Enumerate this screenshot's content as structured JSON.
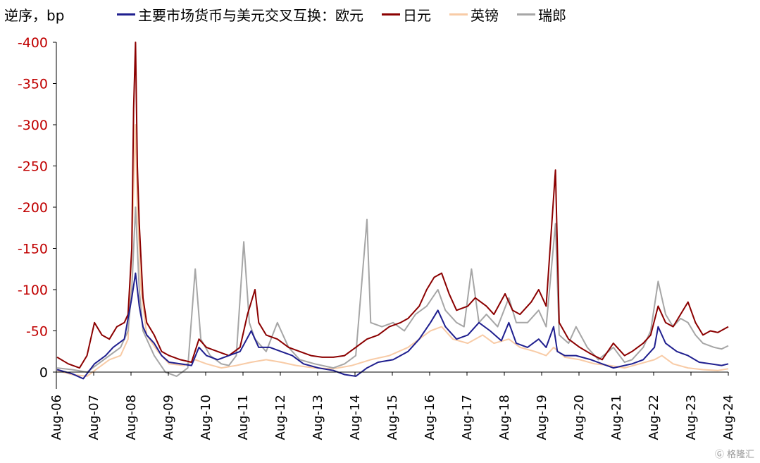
{
  "chart_data": {
    "type": "line",
    "ylabel": "逆序，bp",
    "y_reversed": true,
    "ylim": [
      20,
      -400
    ],
    "yticks": [
      -400,
      -350,
      -300,
      -250,
      -200,
      -150,
      -100,
      -50,
      0
    ],
    "ytick_labels": [
      "-400",
      "-350",
      "-300",
      "-250",
      "-200",
      "-150",
      "-100",
      "-50",
      "0"
    ],
    "ytick_color": "#c00000",
    "xlim": [
      2006.58,
      2024.58
    ],
    "xticks": [
      "Aug-06",
      "Aug-07",
      "Aug-08",
      "Aug-09",
      "Aug-10",
      "Aug-11",
      "Aug-12",
      "Aug-13",
      "Aug-14",
      "Aug-15",
      "Aug-16",
      "Aug-17",
      "Aug-18",
      "Aug-19",
      "Aug-20",
      "Aug-21",
      "Aug-22",
      "Aug-23",
      "Aug-24"
    ],
    "legend_position": "top",
    "grid": false,
    "series": [
      {
        "name": "主要市场货币与美元交叉互换：欧元",
        "color": "#1f1f8f",
        "points": [
          [
            2006.6,
            -3
          ],
          [
            2007.0,
            2
          ],
          [
            2007.3,
            8
          ],
          [
            2007.6,
            -10
          ],
          [
            2007.9,
            -20
          ],
          [
            2008.1,
            -30
          ],
          [
            2008.4,
            -40
          ],
          [
            2008.6,
            -90
          ],
          [
            2008.7,
            -120
          ],
          [
            2008.8,
            -80
          ],
          [
            2008.9,
            -55
          ],
          [
            2009.0,
            -45
          ],
          [
            2009.2,
            -35
          ],
          [
            2009.4,
            -20
          ],
          [
            2009.6,
            -12
          ],
          [
            2009.9,
            -10
          ],
          [
            2010.2,
            -8
          ],
          [
            2010.4,
            -30
          ],
          [
            2010.6,
            -20
          ],
          [
            2010.9,
            -15
          ],
          [
            2011.2,
            -20
          ],
          [
            2011.5,
            -25
          ],
          [
            2011.8,
            -50
          ],
          [
            2011.9,
            -40
          ],
          [
            2012.0,
            -30
          ],
          [
            2012.3,
            -30
          ],
          [
            2012.6,
            -25
          ],
          [
            2012.9,
            -20
          ],
          [
            2013.2,
            -10
          ],
          [
            2013.6,
            -5
          ],
          [
            2014.0,
            -2
          ],
          [
            2014.3,
            3
          ],
          [
            2014.6,
            5
          ],
          [
            2014.9,
            -5
          ],
          [
            2015.2,
            -12
          ],
          [
            2015.6,
            -15
          ],
          [
            2016.0,
            -25
          ],
          [
            2016.3,
            -40
          ],
          [
            2016.6,
            -60
          ],
          [
            2016.8,
            -75
          ],
          [
            2017.0,
            -55
          ],
          [
            2017.3,
            -40
          ],
          [
            2017.6,
            -45
          ],
          [
            2017.9,
            -60
          ],
          [
            2018.2,
            -50
          ],
          [
            2018.5,
            -38
          ],
          [
            2018.7,
            -60
          ],
          [
            2018.9,
            -35
          ],
          [
            2019.2,
            -30
          ],
          [
            2019.5,
            -40
          ],
          [
            2019.7,
            -30
          ],
          [
            2019.9,
            -55
          ],
          [
            2020.0,
            -25
          ],
          [
            2020.2,
            -20
          ],
          [
            2020.5,
            -20
          ],
          [
            2020.9,
            -15
          ],
          [
            2021.2,
            -10
          ],
          [
            2021.5,
            -5
          ],
          [
            2021.8,
            -8
          ],
          [
            2022.0,
            -10
          ],
          [
            2022.3,
            -15
          ],
          [
            2022.6,
            -30
          ],
          [
            2022.7,
            -55
          ],
          [
            2022.9,
            -35
          ],
          [
            2023.2,
            -25
          ],
          [
            2023.5,
            -20
          ],
          [
            2023.8,
            -12
          ],
          [
            2024.1,
            -10
          ],
          [
            2024.4,
            -8
          ],
          [
            2024.58,
            -10
          ]
        ]
      },
      {
        "name": "日元",
        "color": "#8b0000",
        "points": [
          [
            2006.6,
            -18
          ],
          [
            2006.9,
            -10
          ],
          [
            2007.2,
            -5
          ],
          [
            2007.4,
            -20
          ],
          [
            2007.6,
            -60
          ],
          [
            2007.8,
            -45
          ],
          [
            2008.0,
            -40
          ],
          [
            2008.2,
            -55
          ],
          [
            2008.4,
            -60
          ],
          [
            2008.5,
            -70
          ],
          [
            2008.6,
            -150
          ],
          [
            2008.65,
            -320
          ],
          [
            2008.7,
            -400
          ],
          [
            2008.75,
            -250
          ],
          [
            2008.8,
            -180
          ],
          [
            2008.9,
            -90
          ],
          [
            2009.0,
            -60
          ],
          [
            2009.2,
            -45
          ],
          [
            2009.4,
            -25
          ],
          [
            2009.6,
            -20
          ],
          [
            2009.9,
            -15
          ],
          [
            2010.2,
            -12
          ],
          [
            2010.4,
            -40
          ],
          [
            2010.6,
            -30
          ],
          [
            2010.9,
            -25
          ],
          [
            2011.2,
            -20
          ],
          [
            2011.5,
            -30
          ],
          [
            2011.7,
            -70
          ],
          [
            2011.9,
            -100
          ],
          [
            2012.0,
            -60
          ],
          [
            2012.2,
            -45
          ],
          [
            2012.5,
            -40
          ],
          [
            2012.8,
            -30
          ],
          [
            2013.1,
            -25
          ],
          [
            2013.4,
            -20
          ],
          [
            2013.7,
            -18
          ],
          [
            2014.0,
            -18
          ],
          [
            2014.3,
            -20
          ],
          [
            2014.6,
            -30
          ],
          [
            2014.9,
            -40
          ],
          [
            2015.2,
            -45
          ],
          [
            2015.5,
            -55
          ],
          [
            2015.8,
            -60
          ],
          [
            2016.0,
            -65
          ],
          [
            2016.3,
            -80
          ],
          [
            2016.5,
            -100
          ],
          [
            2016.7,
            -115
          ],
          [
            2016.9,
            -120
          ],
          [
            2017.1,
            -95
          ],
          [
            2017.3,
            -75
          ],
          [
            2017.6,
            -80
          ],
          [
            2017.8,
            -90
          ],
          [
            2018.1,
            -80
          ],
          [
            2018.3,
            -70
          ],
          [
            2018.6,
            -95
          ],
          [
            2018.8,
            -75
          ],
          [
            2019.0,
            -70
          ],
          [
            2019.3,
            -85
          ],
          [
            2019.5,
            -100
          ],
          [
            2019.7,
            -80
          ],
          [
            2019.95,
            -245
          ],
          [
            2020.05,
            -60
          ],
          [
            2020.3,
            -40
          ],
          [
            2020.6,
            -30
          ],
          [
            2020.9,
            -22
          ],
          [
            2021.2,
            -15
          ],
          [
            2021.5,
            -35
          ],
          [
            2021.8,
            -20
          ],
          [
            2022.0,
            -25
          ],
          [
            2022.3,
            -35
          ],
          [
            2022.5,
            -45
          ],
          [
            2022.7,
            -80
          ],
          [
            2022.9,
            -60
          ],
          [
            2023.1,
            -55
          ],
          [
            2023.3,
            -70
          ],
          [
            2023.5,
            -85
          ],
          [
            2023.7,
            -60
          ],
          [
            2023.9,
            -45
          ],
          [
            2024.1,
            -50
          ],
          [
            2024.3,
            -48
          ],
          [
            2024.58,
            -55
          ]
        ]
      },
      {
        "name": "英镑",
        "color": "#f8cba6",
        "points": [
          [
            2006.6,
            -2
          ],
          [
            2007.0,
            3
          ],
          [
            2007.4,
            5
          ],
          [
            2007.7,
            -5
          ],
          [
            2008.0,
            -15
          ],
          [
            2008.3,
            -20
          ],
          [
            2008.5,
            -40
          ],
          [
            2008.6,
            -150
          ],
          [
            2008.7,
            -300
          ],
          [
            2008.75,
            -200
          ],
          [
            2008.85,
            -100
          ],
          [
            2009.0,
            -45
          ],
          [
            2009.3,
            -25
          ],
          [
            2009.6,
            -10
          ],
          [
            2010.0,
            -8
          ],
          [
            2010.3,
            -15
          ],
          [
            2010.6,
            -10
          ],
          [
            2011.0,
            -5
          ],
          [
            2011.4,
            -8
          ],
          [
            2011.8,
            -12
          ],
          [
            2012.2,
            -15
          ],
          [
            2012.6,
            -12
          ],
          [
            2013.0,
            -8
          ],
          [
            2013.5,
            -5
          ],
          [
            2014.0,
            -4
          ],
          [
            2014.5,
            -8
          ],
          [
            2015.0,
            -15
          ],
          [
            2015.5,
            -20
          ],
          [
            2016.0,
            -30
          ],
          [
            2016.3,
            -40
          ],
          [
            2016.6,
            -50
          ],
          [
            2016.9,
            -55
          ],
          [
            2017.2,
            -40
          ],
          [
            2017.6,
            -35
          ],
          [
            2018.0,
            -45
          ],
          [
            2018.3,
            -35
          ],
          [
            2018.7,
            -40
          ],
          [
            2019.0,
            -30
          ],
          [
            2019.4,
            -25
          ],
          [
            2019.7,
            -20
          ],
          [
            2019.9,
            -30
          ],
          [
            2020.2,
            -18
          ],
          [
            2020.6,
            -15
          ],
          [
            2021.0,
            -10
          ],
          [
            2021.4,
            -8
          ],
          [
            2021.8,
            -5
          ],
          [
            2022.2,
            -10
          ],
          [
            2022.6,
            -15
          ],
          [
            2022.8,
            -20
          ],
          [
            2023.1,
            -10
          ],
          [
            2023.5,
            -5
          ],
          [
            2023.9,
            -3
          ],
          [
            2024.3,
            -2
          ],
          [
            2024.58,
            -4
          ]
        ]
      },
      {
        "name": "瑞郎",
        "color": "#a6a6a6",
        "points": [
          [
            2006.6,
            -5
          ],
          [
            2007.0,
            -3
          ],
          [
            2007.4,
            0
          ],
          [
            2007.7,
            -10
          ],
          [
            2008.0,
            -20
          ],
          [
            2008.3,
            -30
          ],
          [
            2008.5,
            -50
          ],
          [
            2008.6,
            -100
          ],
          [
            2008.7,
            -200
          ],
          [
            2008.8,
            -100
          ],
          [
            2008.9,
            -50
          ],
          [
            2009.2,
            -20
          ],
          [
            2009.5,
            0
          ],
          [
            2009.8,
            5
          ],
          [
            2010.1,
            -5
          ],
          [
            2010.3,
            -125
          ],
          [
            2010.45,
            -40
          ],
          [
            2010.7,
            -20
          ],
          [
            2011.0,
            -10
          ],
          [
            2011.2,
            -8
          ],
          [
            2011.4,
            -20
          ],
          [
            2011.6,
            -158
          ],
          [
            2011.75,
            -60
          ],
          [
            2011.9,
            -40
          ],
          [
            2012.2,
            -25
          ],
          [
            2012.5,
            -60
          ],
          [
            2012.8,
            -30
          ],
          [
            2013.1,
            -15
          ],
          [
            2013.5,
            -10
          ],
          [
            2014.0,
            -5
          ],
          [
            2014.3,
            -10
          ],
          [
            2014.6,
            -20
          ],
          [
            2014.9,
            -185
          ],
          [
            2015.0,
            -60
          ],
          [
            2015.3,
            -55
          ],
          [
            2015.6,
            -60
          ],
          [
            2015.9,
            -50
          ],
          [
            2016.2,
            -70
          ],
          [
            2016.5,
            -80
          ],
          [
            2016.8,
            -100
          ],
          [
            2017.0,
            -75
          ],
          [
            2017.3,
            -60
          ],
          [
            2017.5,
            -55
          ],
          [
            2017.7,
            -125
          ],
          [
            2017.9,
            -60
          ],
          [
            2018.1,
            -70
          ],
          [
            2018.4,
            -55
          ],
          [
            2018.7,
            -90
          ],
          [
            2018.9,
            -60
          ],
          [
            2019.2,
            -60
          ],
          [
            2019.5,
            -75
          ],
          [
            2019.7,
            -55
          ],
          [
            2019.95,
            -180
          ],
          [
            2020.05,
            -45
          ],
          [
            2020.3,
            -35
          ],
          [
            2020.5,
            -55
          ],
          [
            2020.8,
            -30
          ],
          [
            2021.1,
            -15
          ],
          [
            2021.5,
            -30
          ],
          [
            2021.8,
            -12
          ],
          [
            2022.0,
            -15
          ],
          [
            2022.3,
            -30
          ],
          [
            2022.5,
            -50
          ],
          [
            2022.7,
            -110
          ],
          [
            2022.9,
            -70
          ],
          [
            2023.1,
            -55
          ],
          [
            2023.3,
            -65
          ],
          [
            2023.5,
            -60
          ],
          [
            2023.7,
            -45
          ],
          [
            2023.9,
            -35
          ],
          [
            2024.2,
            -30
          ],
          [
            2024.4,
            -28
          ],
          [
            2024.58,
            -32
          ]
        ]
      }
    ]
  },
  "watermark_text": "格隆汇"
}
